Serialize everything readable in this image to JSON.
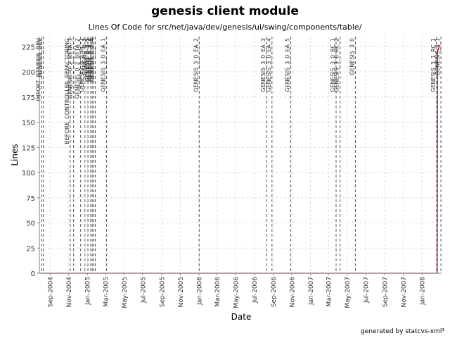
{
  "chart_data": {
    "type": "line",
    "title": "genesis client module",
    "subtitle": "Lines Of Code for src/net/java/dev/genesis/ui/swing/components/table/",
    "xlabel": "Date",
    "ylabel": "Lines",
    "ylim": [
      0,
      235
    ],
    "xlim": [
      "2004-07-28",
      "2008-03-05"
    ],
    "y_ticks": [
      0,
      25,
      50,
      75,
      100,
      125,
      150,
      175,
      200,
      225
    ],
    "x_ticks": [
      {
        "date": "2004-09-01",
        "label": "Sep-2004"
      },
      {
        "date": "2004-11-01",
        "label": "Nov-2004"
      },
      {
        "date": "2005-01-01",
        "label": "Jan-2005"
      },
      {
        "date": "2005-03-01",
        "label": "Mar-2005"
      },
      {
        "date": "2005-05-01",
        "label": "May-2005"
      },
      {
        "date": "2005-07-01",
        "label": "Jul-2005"
      },
      {
        "date": "2005-09-01",
        "label": "Sep-2005"
      },
      {
        "date": "2005-11-01",
        "label": "Nov-2005"
      },
      {
        "date": "2006-01-01",
        "label": "Jan-2006"
      },
      {
        "date": "2006-03-01",
        "label": "Mar-2006"
      },
      {
        "date": "2006-05-01",
        "label": "May-2006"
      },
      {
        "date": "2006-07-01",
        "label": "Jul-2006"
      },
      {
        "date": "2006-09-01",
        "label": "Sep-2006"
      },
      {
        "date": "2006-11-01",
        "label": "Nov-2006"
      },
      {
        "date": "2007-01-01",
        "label": "Jan-2007"
      },
      {
        "date": "2007-03-01",
        "label": "Mar-2007"
      },
      {
        "date": "2007-05-01",
        "label": "May-2007"
      },
      {
        "date": "2007-07-01",
        "label": "Jul-2007"
      },
      {
        "date": "2007-09-01",
        "label": "Sep-2007"
      },
      {
        "date": "2007-11-01",
        "label": "Nov-2007"
      },
      {
        "date": "2008-01-01",
        "label": "Jan-2008"
      }
    ],
    "grid": true,
    "series": [
      {
        "color": "#cc0000",
        "points": [
          {
            "x": "2004-08-01",
            "y": 0
          },
          {
            "x": "2008-02-20",
            "y": 0
          },
          {
            "x": "2008-02-21",
            "y": 222
          },
          {
            "x": "2008-02-24",
            "y": 222
          },
          {
            "x": "2008-02-25",
            "y": 226
          },
          {
            "x": "2008-03-01",
            "y": 226
          }
        ]
      }
    ],
    "annotations": [
      {
        "date": "2004-08-05",
        "label": "IMPORT_GENESIS_DEV"
      },
      {
        "date": "2004-08-10",
        "label": "GENESIS_DEV"
      },
      {
        "date": "2004-11-06",
        "label": "BEFORE_CONTROLLER_REFACTORING"
      },
      {
        "date": "2004-11-17",
        "label": "GENESIS_0_2_BETA_1"
      },
      {
        "date": "2004-12-10",
        "label": "GENESIS_0_2_BETA_2"
      },
      {
        "date": "2004-12-24",
        "label": "GENESIS_0_2_RC_1"
      },
      {
        "date": "2005-01-03",
        "label": "GENESIS_0_2"
      },
      {
        "date": "2005-01-12",
        "label": "GENESIS_0_2_1"
      },
      {
        "date": "2005-01-17",
        "label": "GENESIS_0_2_2"
      },
      {
        "date": "2005-01-22",
        "label": "GENESIS_0_2_3"
      },
      {
        "date": "2005-01-27",
        "label": "GENESIS_0_2_4"
      },
      {
        "date": "2005-03-05",
        "label": "GENESIS_3_0_EA_1"
      },
      {
        "date": "2006-01-02",
        "label": "GENESIS_3_0_EA_2"
      },
      {
        "date": "2006-08-10",
        "label": "GENESIS_3_0_EA_3"
      },
      {
        "date": "2006-08-28",
        "label": "GENESIS_3_0_EA_4"
      },
      {
        "date": "2006-10-28",
        "label": "GENESIS_3_0_EA_5"
      },
      {
        "date": "2007-03-26",
        "label": "GENESIS_3_0_RC_1"
      },
      {
        "date": "2007-04-08",
        "label": "GENESIS_3_0_RC_2"
      },
      {
        "date": "2007-05-28",
        "label": "GENESIS_3_0"
      },
      {
        "date": "2008-02-18",
        "label": "GENESIS_3_1_RC_1"
      },
      {
        "date": "2008-03-03",
        "label": "GENESIS_3_1"
      }
    ]
  },
  "footer": "generated by statcvs-xml³"
}
